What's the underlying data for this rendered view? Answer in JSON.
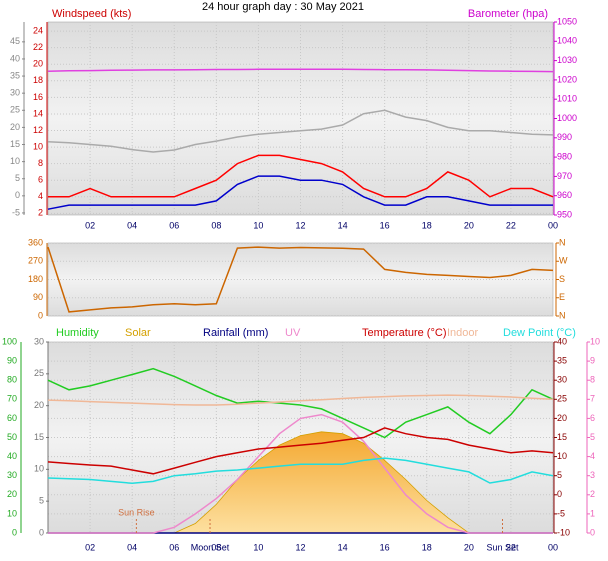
{
  "chart_data": [
    {
      "type": "line",
      "title": "24 hour graph day : 30 May 2021",
      "ylabel": "Windspeed (kts)",
      "y2label": "Barometer (hpa)",
      "xlim": [
        0,
        24
      ],
      "xticks": [
        {
          "value": 2,
          "label": "02"
        },
        {
          "value": 4,
          "label": "04"
        },
        {
          "value": 6,
          "label": "06"
        },
        {
          "value": 8,
          "label": "08"
        },
        10,
        12,
        14,
        16,
        18,
        20,
        22,
        {
          "value": 24,
          "label": "00"
        }
      ],
      "ylim": [
        1.8,
        25.1
      ],
      "yticks": [
        24,
        22,
        20,
        18,
        16,
        14,
        12,
        10,
        8,
        6,
        4,
        2
      ],
      "y3lim": [
        -5.6,
        50.8
      ],
      "y3ticks": [
        45,
        40,
        35,
        30,
        25,
        20,
        15,
        10,
        5,
        0,
        -5
      ],
      "y2lim": [
        950,
        1050
      ],
      "y2ticks": [
        1050,
        1040,
        1030,
        1020,
        1010,
        1000,
        990,
        980,
        970,
        960,
        950
      ],
      "axis_colors": {
        "y": "#cc0000",
        "y3": "#888888",
        "y2": "#cc00cc"
      },
      "grid": true,
      "x": [
        0,
        1,
        2,
        3,
        4,
        5,
        6,
        7,
        8,
        9,
        10,
        11,
        12,
        13,
        14,
        15,
        16,
        17,
        18,
        19,
        20,
        21,
        22,
        23,
        24
      ],
      "series": [
        {
          "color": "#aaaaaa",
          "axis": "y3",
          "values": [
            15.8,
            15.5,
            15,
            14.5,
            13.5,
            12.8,
            13.4,
            15,
            16,
            17.2,
            18,
            18.5,
            19,
            19.5,
            20.7,
            24,
            25,
            23,
            22,
            20,
            19,
            19,
            18.5,
            18,
            17.8
          ]
        },
        {
          "color": "#ff0000",
          "axis": "y",
          "values": [
            4,
            4,
            5,
            4,
            4,
            4,
            4,
            5,
            6,
            8,
            9,
            9,
            8.5,
            8,
            7,
            5,
            4,
            4,
            5,
            7,
            6,
            4,
            5,
            5,
            4
          ]
        },
        {
          "color": "#0000cc",
          "axis": "y",
          "values": [
            2.5,
            3,
            3,
            3,
            3,
            3,
            3,
            3,
            3.5,
            5.5,
            6.5,
            6.5,
            6,
            6,
            5.5,
            4,
            3,
            3,
            4,
            4,
            3.5,
            3,
            3,
            3,
            3
          ]
        },
        {
          "color": "#e040e0",
          "axis": "y2",
          "values": [
            1024.5,
            1024.7,
            1024.8,
            1025,
            1025.1,
            1025.2,
            1025.2,
            1025.3,
            1025.4,
            1025.4,
            1025.5,
            1025.5,
            1025.5,
            1025.5,
            1025.5,
            1025.4,
            1025.3,
            1025.3,
            1025.2,
            1025,
            1024.8,
            1024.6,
            1024.5,
            1024.4,
            1024.3
          ]
        }
      ]
    },
    {
      "type": "line",
      "xlim": [
        0,
        24
      ],
      "ylim": [
        0,
        360
      ],
      "yticks": [
        360,
        270,
        180,
        90,
        0
      ],
      "y2lim": [
        0,
        360
      ],
      "y2ticks": [
        {
          "value": 360,
          "label": "N"
        },
        {
          "value": 270,
          "label": "W"
        },
        {
          "value": 180,
          "label": "S"
        },
        {
          "value": 90,
          "label": "E"
        },
        {
          "value": 0,
          "label": "N"
        }
      ],
      "axis_colors": {
        "y": "#cc6600",
        "y2": "#cc6600"
      },
      "grid": true,
      "x": [
        0,
        1,
        2,
        3,
        4,
        5,
        6,
        7,
        8,
        9,
        10,
        11,
        12,
        13,
        14,
        15,
        16,
        17,
        18,
        19,
        20,
        21,
        22,
        23,
        24
      ],
      "series": [
        {
          "color": "#cc6600",
          "axis": "y",
          "values": [
            340,
            20,
            30,
            40,
            45,
            55,
            60,
            55,
            60,
            335,
            340,
            335,
            338,
            336,
            334,
            330,
            230,
            215,
            205,
            200,
            195,
            190,
            200,
            230,
            225
          ]
        }
      ]
    },
    {
      "type": "line",
      "xlim": [
        0,
        24
      ],
      "xticks": [
        {
          "value": 2,
          "label": "02"
        },
        {
          "value": 4,
          "label": "04"
        },
        {
          "value": 6,
          "label": "06"
        },
        {
          "value": 8,
          "label": "08"
        },
        10,
        12,
        14,
        16,
        18,
        20,
        22,
        {
          "value": 24,
          "label": "00"
        }
      ],
      "ylim": [
        0,
        100
      ],
      "yticks": [
        100,
        90,
        80,
        70,
        60,
        50,
        40,
        30,
        20,
        10,
        0
      ],
      "y3lim": [
        0,
        30
      ],
      "y3ticks": [
        30,
        25,
        20,
        15,
        10,
        5,
        0
      ],
      "y2lim": [
        -10,
        40
      ],
      "y2ticks": [
        40,
        35,
        30,
        25,
        20,
        15,
        10,
        5,
        0,
        -5,
        -10
      ],
      "y4lim": [
        0,
        10
      ],
      "y4ticks": [
        10,
        9,
        8,
        7,
        6,
        5,
        4,
        3,
        2,
        1,
        0
      ],
      "axis_colors": {
        "y": "#22aa22",
        "y3": "#777777",
        "y2": "#880000",
        "y4": "#ee66bb"
      },
      "grid": true,
      "annotations": [
        {
          "text": "Sun Rise",
          "x": 4.2
        },
        {
          "text": "Moon Set",
          "x": 7.7
        },
        {
          "text": "Sun Set",
          "x": 21.6
        }
      ],
      "x": [
        0,
        1,
        2,
        3,
        4,
        5,
        6,
        7,
        8,
        9,
        10,
        11,
        12,
        13,
        14,
        15,
        16,
        17,
        18,
        19,
        20,
        21,
        22,
        23,
        24
      ],
      "series": [
        {
          "name": "Humidity",
          "color": "#22cc22",
          "axis": "y",
          "values": [
            80,
            75,
            77,
            80,
            83,
            86,
            82,
            77,
            72,
            68,
            69,
            68,
            67,
            65,
            60,
            55,
            50,
            58,
            62,
            66,
            58,
            52,
            62,
            75,
            70
          ]
        },
        {
          "name": "Solar",
          "color": "#d4a000",
          "axis": "y",
          "area": true,
          "values": [
            0,
            0,
            0,
            0,
            0,
            0,
            0,
            5,
            15,
            28,
            38,
            46,
            51,
            53,
            52,
            47,
            38,
            28,
            17,
            8,
            0,
            0,
            0,
            0,
            0
          ]
        },
        {
          "name": "Rainfall (mm)",
          "color": "#000080",
          "axis": "y3",
          "values": [
            0,
            0,
            0,
            0,
            0,
            0,
            0,
            0,
            0,
            0,
            0,
            0,
            0,
            0,
            0,
            0,
            0,
            0,
            0,
            0,
            0,
            0,
            0,
            0,
            0
          ]
        },
        {
          "name": "UV",
          "color": "#ee88cc",
          "axis": "y4",
          "values": [
            0,
            0,
            0,
            0,
            0,
            0,
            0.3,
            1,
            1.8,
            2.8,
            4,
            5.2,
            6,
            6.2,
            5.8,
            4.8,
            3.4,
            2,
            1,
            0.3,
            0,
            0,
            0,
            0,
            0
          ]
        },
        {
          "name": "Temperature (°C)",
          "color": "#cc0000",
          "axis": "y2",
          "values": [
            8.6,
            8.2,
            7.8,
            7.5,
            6.5,
            5.5,
            7,
            8.5,
            10,
            11,
            12,
            12.5,
            13,
            13.5,
            14.3,
            15,
            17.5,
            16,
            15,
            14.5,
            13,
            12,
            11,
            11.5,
            11
          ]
        },
        {
          "name": "Indoor",
          "color": "#f0b898",
          "axis": "y2",
          "values": [
            24.8,
            24.6,
            24.4,
            24.2,
            24,
            23.8,
            23.6,
            23.5,
            23.5,
            23.7,
            24,
            24.3,
            24.6,
            24.9,
            25.2,
            25.5,
            25.7,
            25.9,
            26,
            26.1,
            26,
            25.8,
            25.6,
            25.3,
            25
          ]
        },
        {
          "name": "Dew Point (°C)",
          "color": "#22dddd",
          "axis": "y2",
          "values": [
            4.4,
            4.2,
            4,
            3.5,
            3,
            3.5,
            5,
            5.5,
            6.2,
            6.5,
            7,
            7.5,
            8,
            8,
            8,
            9,
            9.6,
            9,
            8,
            7,
            6,
            3.1,
            4,
            6,
            5
          ]
        }
      ]
    }
  ]
}
